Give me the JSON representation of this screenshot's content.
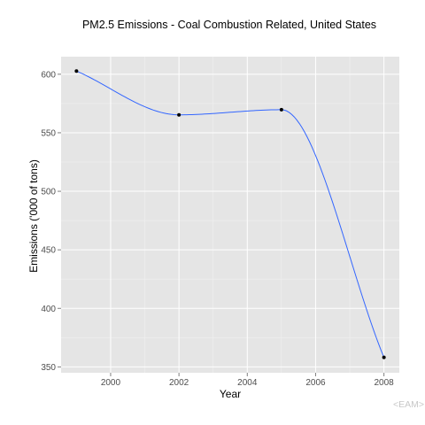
{
  "chart_data": {
    "type": "line",
    "title": "PM2.5 Emissions - Coal Combustion Related, United States",
    "xlabel": "Year",
    "ylabel": "Emissions ('000 of tons)",
    "x": [
      1999,
      2002,
      2005,
      2008
    ],
    "series": [
      {
        "values": [
          602.7,
          565.3,
          569.7,
          358.1
        ],
        "color": "#3366ff",
        "smoothed": true,
        "points": true
      }
    ],
    "x_ticks": [
      2000,
      2002,
      2004,
      2006,
      2008
    ],
    "y_ticks": [
      350,
      400,
      450,
      500,
      550,
      600
    ],
    "xlim": [
      1998.55,
      2008.45
    ],
    "ylim": [
      345,
      615
    ],
    "grid": true,
    "legend": "none"
  },
  "watermark": "<EAM>",
  "colors": {
    "panel_background": "#e5e5e5",
    "grid_major": "#ffffff",
    "grid_minor": "#f2f2f2",
    "line": "#3366ff",
    "point": "#000000"
  }
}
